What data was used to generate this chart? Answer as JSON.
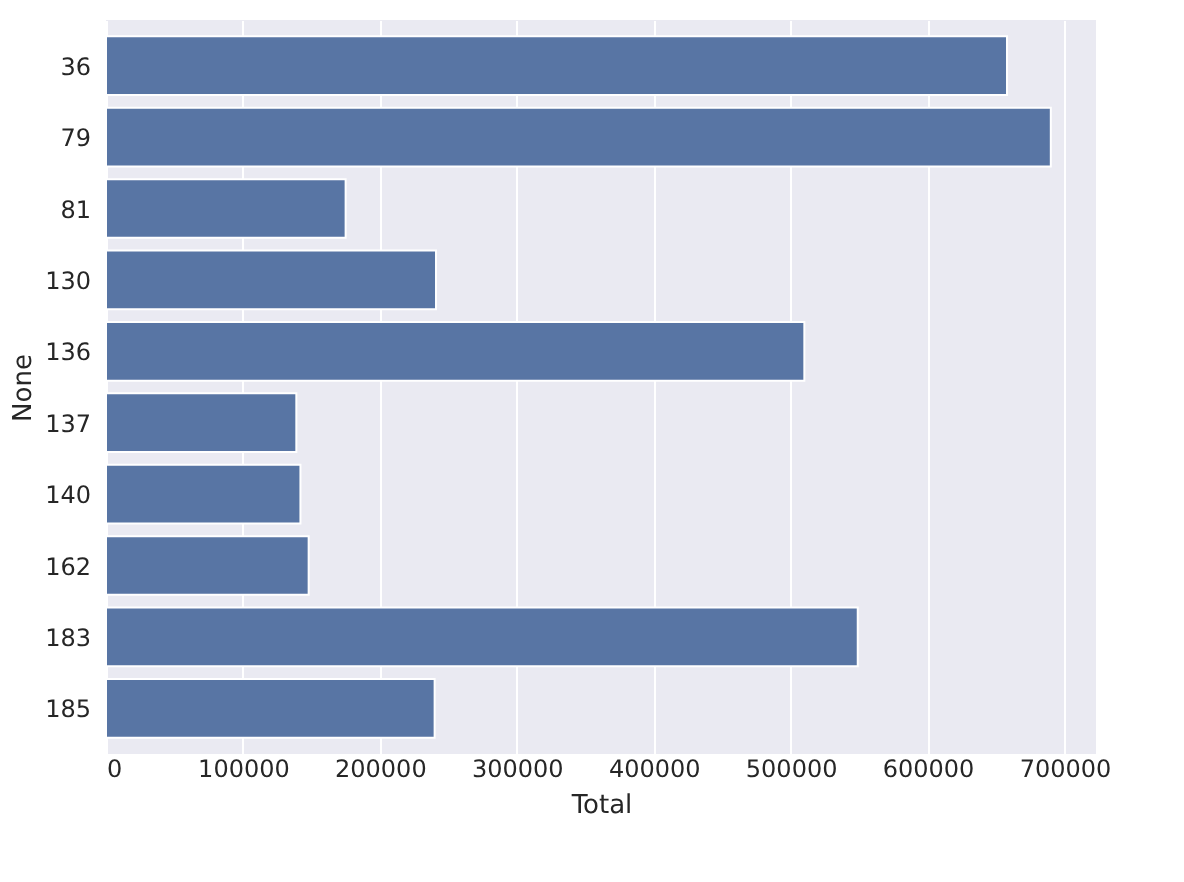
{
  "chart_data": {
    "type": "bar",
    "orientation": "horizontal",
    "xlabel": "Total",
    "ylabel": "None",
    "categories": [
      "36",
      "79",
      "81",
      "130",
      "136",
      "137",
      "140",
      "162",
      "183",
      "185"
    ],
    "values": [
      658000,
      690000,
      175000,
      241000,
      510000,
      139000,
      142000,
      148000,
      549000,
      240000
    ],
    "color": "#5875a4",
    "xlim": [
      0,
      723000
    ],
    "xticks": [
      0,
      100000,
      200000,
      300000,
      400000,
      500000,
      600000,
      700000
    ],
    "grid": "x"
  }
}
